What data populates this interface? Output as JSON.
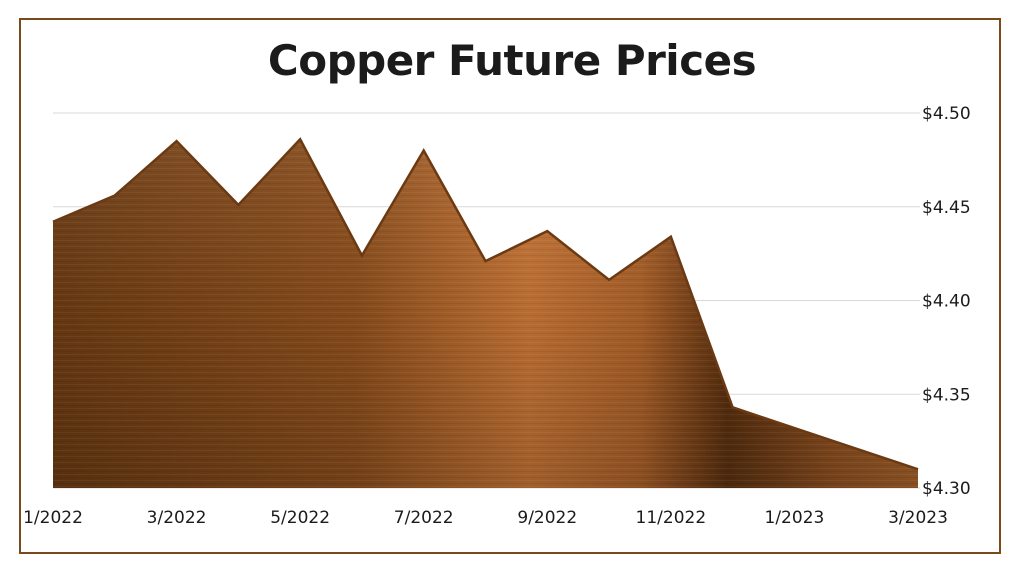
{
  "chart_data": {
    "type": "area",
    "title": "Copper Future Prices",
    "xlabel": "",
    "ylabel": "",
    "x": [
      "1/2022",
      "2/2022",
      "3/2022",
      "4/2022",
      "5/2022",
      "6/2022",
      "7/2022",
      "8/2022",
      "9/2022",
      "10/2022",
      "11/2022",
      "12/2022",
      "1/2023",
      "2/2023",
      "3/2023"
    ],
    "x_tick_labels": [
      "1/2022",
      "3/2022",
      "5/2022",
      "7/2022",
      "9/2022",
      "11/2022",
      "1/2023",
      "3/2023"
    ],
    "series": [
      {
        "values": [
          4.442,
          4.456,
          4.485,
          4.451,
          4.486,
          4.424,
          4.48,
          4.421,
          4.437,
          4.411,
          4.434,
          4.343,
          4.332,
          4.321,
          4.31
        ]
      }
    ],
    "ylim": [
      4.3,
      4.5
    ],
    "y_ticks": [
      4.3,
      4.35,
      4.4,
      4.45,
      4.5
    ],
    "y_tick_labels": [
      "$4.30",
      "$4.35",
      "$4.40",
      "$4.45",
      "$4.50"
    ],
    "y_axis_side": "right",
    "grid": true,
    "legend": "none",
    "colors": {
      "area_fill": "#a35f2a",
      "area_dark": "#5e3410",
      "area_light": "#d98a45",
      "area_stroke": "#6b3a12",
      "frame": "#7a4a1c",
      "grid": "#d9d9d9",
      "text": "#1b1b1b"
    }
  }
}
